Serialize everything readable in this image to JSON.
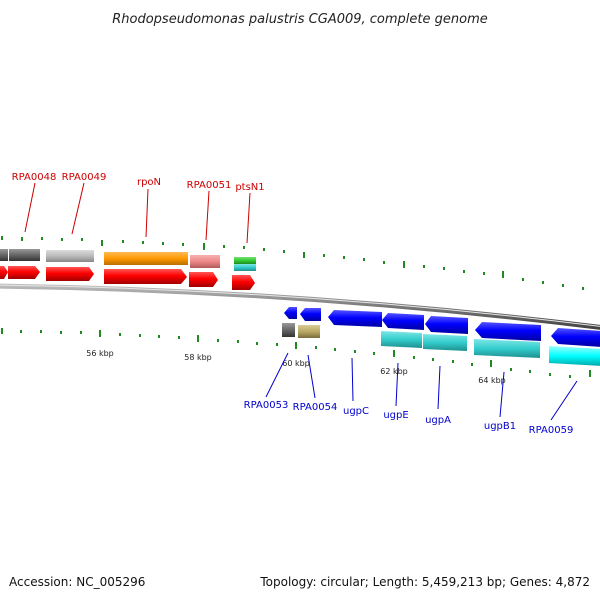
{
  "title": "Rhodopseudomonas palustris CGA009, complete genome",
  "footer": {
    "accession": "Accession: NC_005296",
    "topology": "Topology: circular; Length: 5,459,213 bp; Genes: 4,872"
  },
  "scale": {
    "ticks": [
      {
        "label": "56 kbp"
      },
      {
        "label": "58 kbp"
      },
      {
        "label": "60 kbp"
      },
      {
        "label": "62 kbp"
      },
      {
        "label": "64 kbp"
      }
    ]
  },
  "genes_forward": [
    {
      "name": "RPA0048",
      "color": "#ff0000"
    },
    {
      "name": "RPA0049",
      "color": "#ff0000"
    },
    {
      "name": "rpoN",
      "color": "#ff0000"
    },
    {
      "name": "RPA0051",
      "color": "#ff0000"
    },
    {
      "name": "ptsN1",
      "color": "#ff0000"
    }
  ],
  "genes_reverse": [
    {
      "name": "RPA0053",
      "color": "#0000ff"
    },
    {
      "name": "RPA0054",
      "color": "#0000ff"
    },
    {
      "name": "ugpC",
      "color": "#0000ff"
    },
    {
      "name": "ugpE",
      "color": "#0000ff"
    },
    {
      "name": "ugpA",
      "color": "#0000ff"
    },
    {
      "name": "ugpB1",
      "color": "#0000ff"
    },
    {
      "name": "RPA0059",
      "color": "#0000ff"
    }
  ],
  "colors": {
    "forward_label": "#cc0000",
    "reverse_label": "#0000cc",
    "backbone": "#888888",
    "tick": "#228822",
    "cog_gray_dark": "#666666",
    "cog_gray_light": "#bbbbbb",
    "cog_orange": "#ff9900",
    "cog_pink": "#ee8888",
    "cog_green": "#33cc33",
    "cog_teal": "#33cccc",
    "cog_khaki": "#bbaa66",
    "cog_cyan": "#00ffff"
  }
}
